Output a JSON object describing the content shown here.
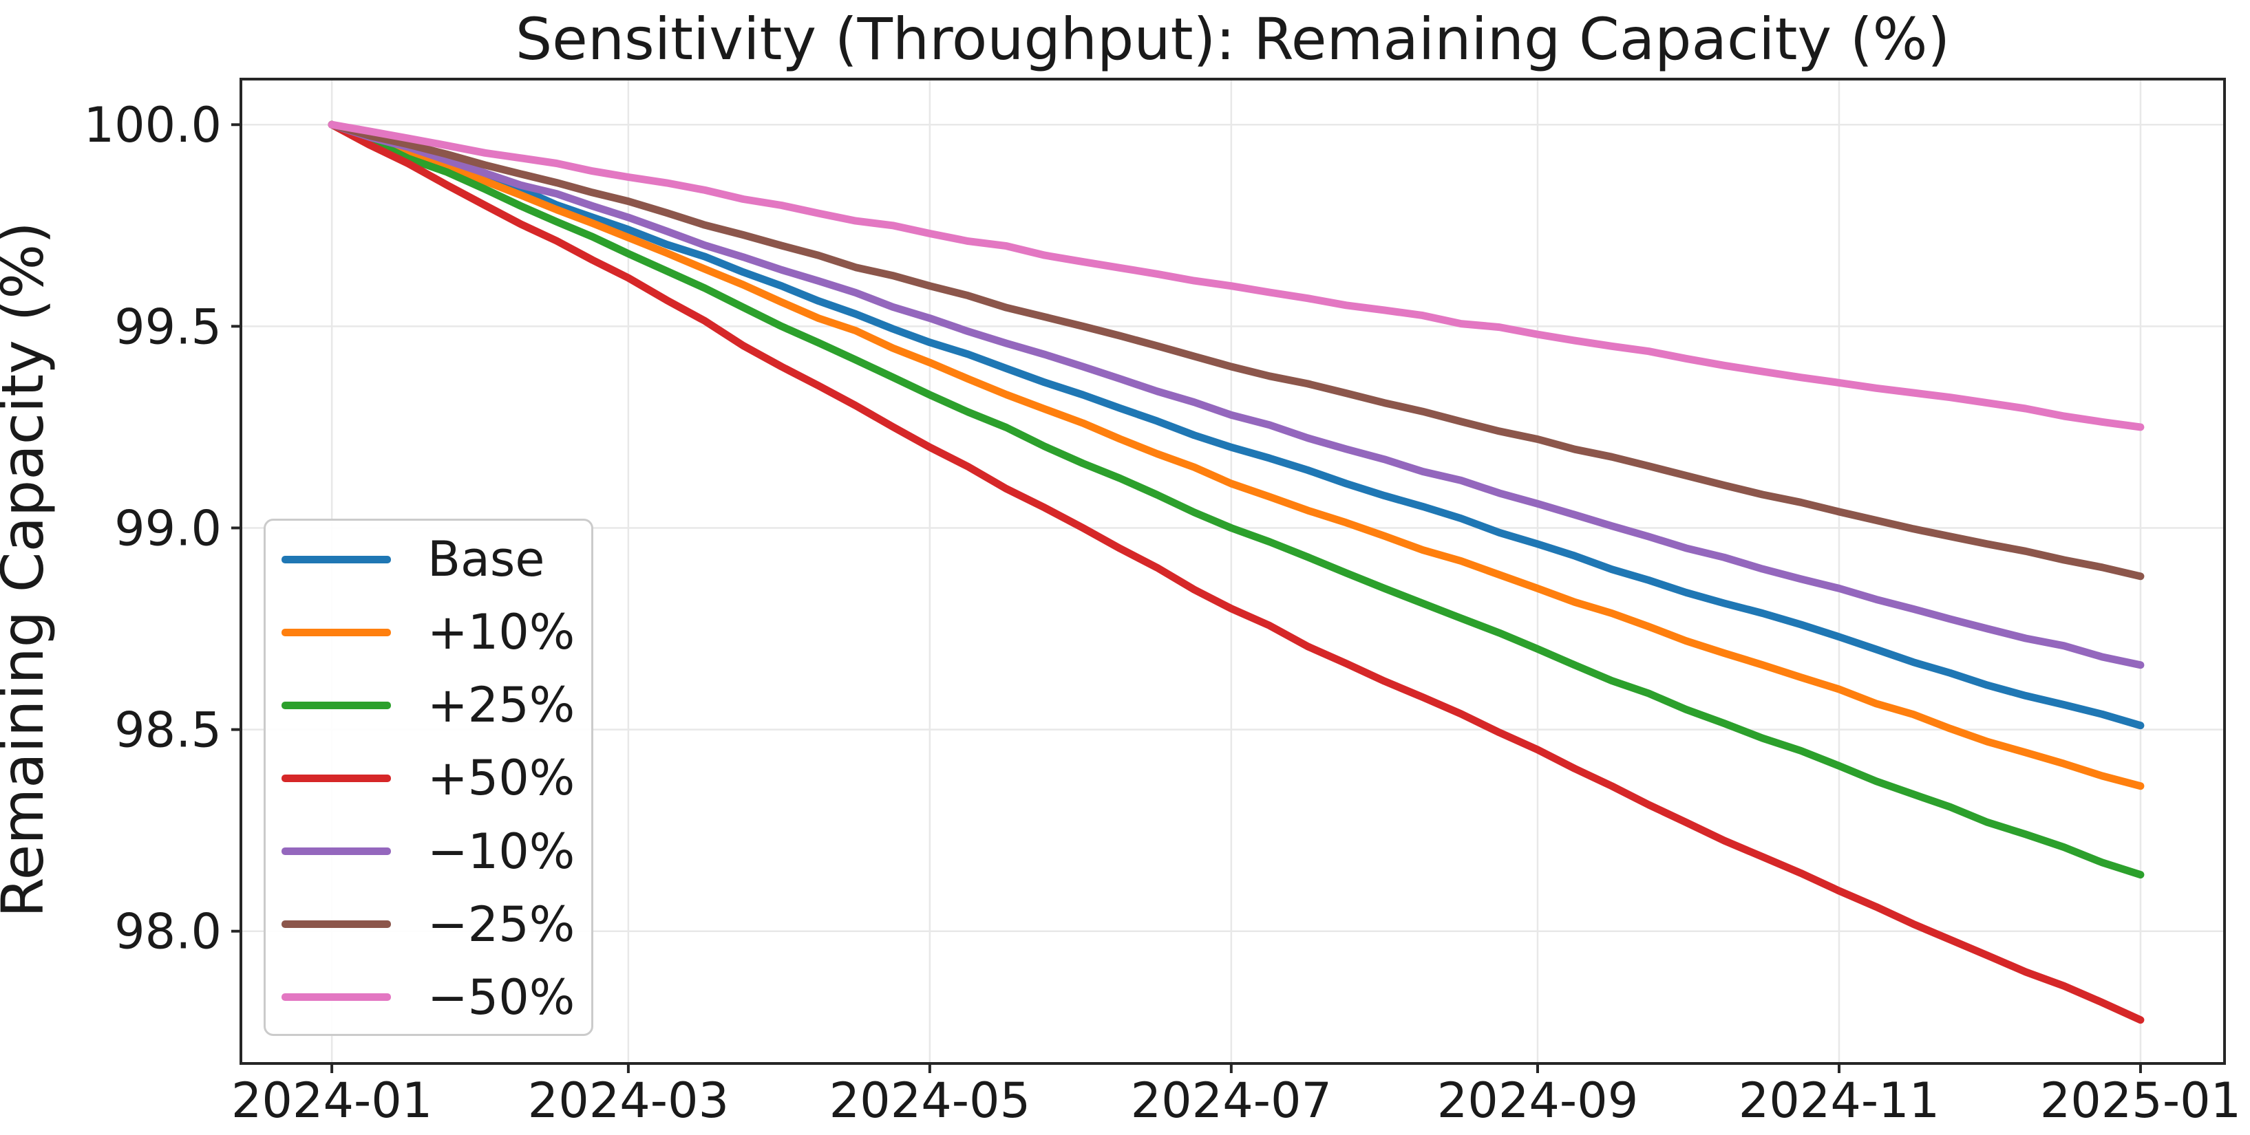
{
  "figure": {
    "background": "#ffffff",
    "text_color": "#1a1a1a",
    "grid_color": "#e8e8e8",
    "spine_color": "#262626"
  },
  "chart_data": {
    "type": "line",
    "title": "Sensitivity (Throughput): Remaining Capacity (%)",
    "xlabel": "",
    "ylabel": "Remaining Capacity (%)",
    "grid": true,
    "legend_position": "lower left inside",
    "ylim": [
      97.67,
      100.11
    ],
    "y_ticks": [
      100.0,
      99.5,
      99.0,
      98.5,
      98.0
    ],
    "y_tick_labels": [
      "100.0",
      "99.5",
      "99.0",
      "98.5",
      "98.0"
    ],
    "x_tick_labels": [
      "2024-01",
      "2024-03",
      "2024-05",
      "2024-07",
      "2024-09",
      "2024-11",
      "2025-01"
    ],
    "x": [
      "2024-01",
      "2024-02",
      "2024-03",
      "2024-04",
      "2024-05",
      "2024-06",
      "2024-07",
      "2024-08",
      "2024-09",
      "2024-10",
      "2024-11",
      "2024-12",
      "2025-01"
    ],
    "series": [
      {
        "name": "Base",
        "color": "#1f77b4",
        "values": [
          100.0,
          99.87,
          99.74,
          99.6,
          99.46,
          99.33,
          99.2,
          99.08,
          98.96,
          98.84,
          98.73,
          98.61,
          98.51
        ]
      },
      {
        "name": "+10%",
        "color": "#ff7f0e",
        "values": [
          100.0,
          99.86,
          99.72,
          99.56,
          99.41,
          99.26,
          99.11,
          98.98,
          98.85,
          98.72,
          98.6,
          98.47,
          98.36
        ]
      },
      {
        "name": "+25%",
        "color": "#2ca02c",
        "values": [
          100.0,
          99.84,
          99.68,
          99.5,
          99.33,
          99.16,
          99.0,
          98.85,
          98.7,
          98.55,
          98.41,
          98.27,
          98.14
        ]
      },
      {
        "name": "+50%",
        "color": "#d62728",
        "values": [
          100.0,
          99.8,
          99.62,
          99.4,
          99.2,
          99.0,
          98.8,
          98.62,
          98.45,
          98.27,
          98.1,
          97.94,
          97.78
        ]
      },
      {
        "name": "−10%",
        "color": "#9467bd",
        "values": [
          100.0,
          99.88,
          99.77,
          99.64,
          99.52,
          99.4,
          99.28,
          99.17,
          99.06,
          98.95,
          98.85,
          98.75,
          98.66
        ]
      },
      {
        "name": "−25%",
        "color": "#8c564b",
        "values": [
          100.0,
          99.9,
          99.81,
          99.7,
          99.6,
          99.5,
          99.4,
          99.31,
          99.22,
          99.13,
          99.04,
          98.96,
          98.88
        ]
      },
      {
        "name": "−50%",
        "color": "#e377c2",
        "values": [
          100.0,
          99.93,
          99.87,
          99.8,
          99.73,
          99.66,
          99.6,
          99.54,
          99.48,
          99.42,
          99.36,
          99.31,
          99.25
        ]
      }
    ]
  }
}
